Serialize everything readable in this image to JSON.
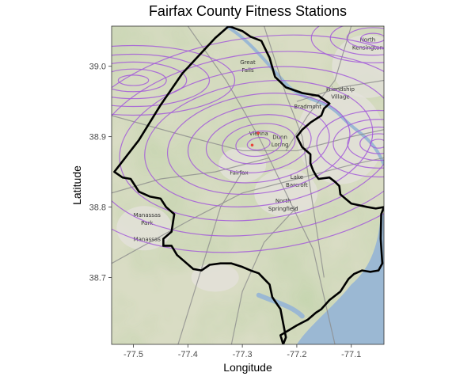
{
  "title": "Fairfax County Fitness Stations",
  "x_axis": {
    "label": "Longitude",
    "ticks": [
      "-77.5",
      "-77.4",
      "-77.3",
      "-77.2",
      "-77.1"
    ],
    "tick_values": [
      -77.5,
      -77.4,
      -77.3,
      -77.2,
      -77.1
    ],
    "range": [
      -77.54,
      -77.04
    ]
  },
  "y_axis": {
    "label": "Latitude",
    "ticks": [
      "38.7",
      "38.8",
      "38.9",
      "39.0"
    ],
    "tick_values": [
      38.7,
      38.8,
      38.9,
      39.0
    ],
    "range": [
      38.605,
      39.057
    ]
  },
  "place_labels": [
    {
      "text": "North",
      "lon": -77.07,
      "lat": 39.035
    },
    {
      "text": "Kensington",
      "lon": -77.07,
      "lat": 39.024
    },
    {
      "text": "Great",
      "lon": -77.29,
      "lat": 39.003
    },
    {
      "text": "Falls",
      "lon": -77.29,
      "lat": 38.992
    },
    {
      "text": "Friendship",
      "lon": -77.12,
      "lat": 38.965
    },
    {
      "text": "Village",
      "lon": -77.12,
      "lat": 38.954
    },
    {
      "text": "Bradmont",
      "lon": -77.18,
      "lat": 38.94
    },
    {
      "text": "Vienna",
      "lon": -77.27,
      "lat": 38.902
    },
    {
      "text": "Dunn",
      "lon": -77.231,
      "lat": 38.897
    },
    {
      "text": "Loring",
      "lon": -77.231,
      "lat": 38.886
    },
    {
      "text": "Fairfax",
      "lon": -77.306,
      "lat": 38.846
    },
    {
      "text": "Lake",
      "lon": -77.2,
      "lat": 38.84
    },
    {
      "text": "Barcroft",
      "lon": -77.2,
      "lat": 38.829
    },
    {
      "text": "North",
      "lon": -77.225,
      "lat": 38.806
    },
    {
      "text": "Springfield",
      "lon": -77.225,
      "lat": 38.795
    },
    {
      "text": "Manassas",
      "lon": -77.475,
      "lat": 38.786
    },
    {
      "text": "Park",
      "lon": -77.475,
      "lat": 38.775
    },
    {
      "text": "Manassas",
      "lon": -77.475,
      "lat": 38.752
    }
  ],
  "density_centers": [
    {
      "lon": -77.27,
      "lat": 38.89
    },
    {
      "lon": -77.05,
      "lat": 38.89
    },
    {
      "lon": -77.06,
      "lat": 39.04
    },
    {
      "lon": -77.5,
      "lat": 38.98
    }
  ],
  "stations": [
    {
      "lon": -77.282,
      "lat": 38.888
    },
    {
      "lon": -77.271,
      "lat": 38.905
    }
  ],
  "colors": {
    "contour": "#a35bd9",
    "boundary": "#000000",
    "station": "#e8443a",
    "terrain_base": "#d9dcc4",
    "terrain_green": "#a9bd8a",
    "water": "#9bb8d3",
    "road": "#8c8c8c"
  },
  "county_boundary": [
    [
      -77.535,
      38.85
    ],
    [
      -77.49,
      38.895
    ],
    [
      -77.45,
      38.945
    ],
    [
      -77.41,
      38.99
    ],
    [
      -77.35,
      39.04
    ],
    [
      -77.325,
      39.057
    ],
    [
      -77.3,
      39.05
    ],
    [
      -77.285,
      39.042
    ],
    [
      -77.265,
      39.036
    ],
    [
      -77.25,
      39.012
    ],
    [
      -77.24,
      38.985
    ],
    [
      -77.22,
      38.97
    ],
    [
      -77.19,
      38.962
    ],
    [
      -77.16,
      38.958
    ],
    [
      -77.14,
      38.947
    ],
    [
      -77.15,
      38.94
    ],
    [
      -77.155,
      38.93
    ],
    [
      -77.175,
      38.92
    ],
    [
      -77.19,
      38.91
    ],
    [
      -77.2,
      38.9
    ],
    [
      -77.19,
      38.885
    ],
    [
      -77.175,
      38.875
    ],
    [
      -77.175,
      38.862
    ],
    [
      -77.17,
      38.852
    ],
    [
      -77.165,
      38.845
    ],
    [
      -77.16,
      38.84
    ],
    [
      -77.14,
      38.842
    ],
    [
      -77.13,
      38.836
    ],
    [
      -77.122,
      38.83
    ],
    [
      -77.12,
      38.818
    ],
    [
      -77.1,
      38.805
    ],
    [
      -77.07,
      38.8
    ],
    [
      -77.055,
      38.798
    ],
    [
      -77.04,
      38.8
    ],
    [
      -77.045,
      38.79
    ],
    [
      -77.046,
      38.755
    ],
    [
      -77.043,
      38.72
    ],
    [
      -77.05,
      38.71
    ],
    [
      -77.065,
      38.708
    ],
    [
      -77.08,
      38.71
    ],
    [
      -77.095,
      38.705
    ],
    [
      -77.105,
      38.698
    ],
    [
      -77.12,
      38.68
    ],
    [
      -77.14,
      38.668
    ],
    [
      -77.155,
      38.655
    ],
    [
      -77.165,
      38.65
    ],
    [
      -77.18,
      38.64
    ],
    [
      -77.2,
      38.632
    ],
    [
      -77.215,
      38.625
    ],
    [
      -77.23,
      38.618
    ],
    [
      -77.225,
      38.605
    ],
    [
      -77.22,
      38.615
    ],
    [
      -77.225,
      38.635
    ],
    [
      -77.23,
      38.655
    ],
    [
      -77.245,
      38.672
    ],
    [
      -77.25,
      38.69
    ],
    [
      -77.26,
      38.698
    ],
    [
      -77.27,
      38.706
    ],
    [
      -77.285,
      38.71
    ],
    [
      -77.3,
      38.715
    ],
    [
      -77.32,
      38.72
    ],
    [
      -77.34,
      38.72
    ],
    [
      -77.36,
      38.718
    ],
    [
      -77.375,
      38.71
    ],
    [
      -77.39,
      38.712
    ],
    [
      -77.405,
      38.722
    ],
    [
      -77.42,
      38.732
    ],
    [
      -77.43,
      38.745
    ],
    [
      -77.445,
      38.745
    ],
    [
      -77.445,
      38.755
    ],
    [
      -77.43,
      38.765
    ],
    [
      -77.425,
      38.79
    ],
    [
      -77.44,
      38.8
    ],
    [
      -77.45,
      38.812
    ],
    [
      -77.47,
      38.815
    ],
    [
      -77.49,
      38.822
    ],
    [
      -77.505,
      38.84
    ],
    [
      -77.52,
      38.842
    ],
    [
      -77.535,
      38.85
    ]
  ]
}
